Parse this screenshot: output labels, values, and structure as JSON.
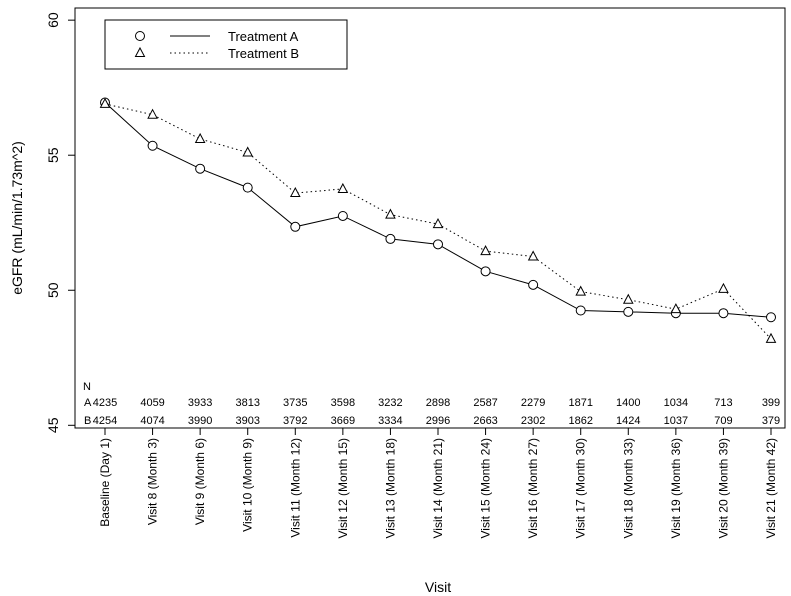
{
  "chart_data": {
    "type": "line",
    "x_label": "Visit",
    "y_label": "eGFR (mL/min/1.73m^2)",
    "categories": [
      "Baseline (Day 1)",
      "Visit 8 (Month 3)",
      "Visit 9 (Month 6)",
      "Visit 10 (Month 9)",
      "Visit 11 (Month 12)",
      "Visit 12 (Month 15)",
      "Visit 13 (Month 18)",
      "Visit 14 (Month 21)",
      "Visit 15 (Month 24)",
      "Visit 16 (Month 27)",
      "Visit 17 (Month 30)",
      "Visit 18 (Month 33)",
      "Visit 19 (Month 36)",
      "Visit 20 (Month 39)",
      "Visit 21 (Month 42)"
    ],
    "series": [
      {
        "name": "Treatment A",
        "color": "#000000",
        "marker": "circle",
        "dash": "solid",
        "values": [
          56.95,
          55.35,
          54.5,
          53.8,
          52.35,
          52.75,
          51.9,
          51.7,
          50.7,
          50.2,
          49.25,
          49.2,
          49.15,
          49.15,
          49.0
        ]
      },
      {
        "name": "Treatment B",
        "color": "#000000",
        "marker": "triangle",
        "dash": "dotted",
        "values": [
          56.9,
          56.5,
          55.6,
          55.1,
          53.6,
          53.75,
          52.8,
          52.45,
          51.45,
          51.25,
          49.95,
          49.65,
          49.3,
          50.05,
          48.2
        ]
      }
    ],
    "ylim": [
      44.9,
      60.45
    ],
    "yticks": [
      45,
      50,
      55,
      60
    ],
    "legend": "top-left",
    "n_table": {
      "header": "N",
      "rows": [
        {
          "label": "A",
          "counts": [
            4235,
            4059,
            3933,
            3813,
            3735,
            3598,
            3232,
            2898,
            2587,
            2279,
            1871,
            1400,
            1034,
            713,
            399
          ]
        },
        {
          "label": "B",
          "counts": [
            4254,
            4074,
            3990,
            3903,
            3792,
            3669,
            3334,
            2996,
            2663,
            2302,
            1862,
            1424,
            1037,
            709,
            379
          ]
        }
      ]
    }
  }
}
